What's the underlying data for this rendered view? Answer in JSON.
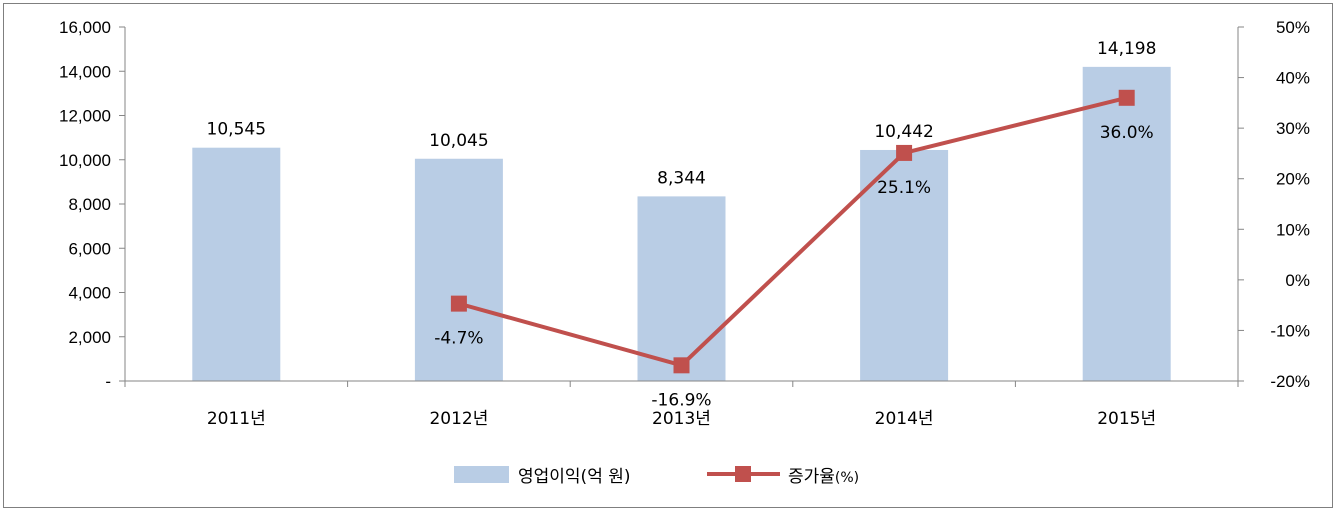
{
  "chart_data": {
    "type": "bar",
    "categories": [
      "2011년",
      "2012년",
      "2013년",
      "2014년",
      "2015년"
    ],
    "series": [
      {
        "name": "영업이익(억 원)",
        "type": "bar",
        "axis": "left",
        "values": [
          10545,
          10045,
          8344,
          10442,
          14198
        ],
        "labels": [
          "10,545",
          "10,045",
          "8,344",
          "10,442",
          "14,198"
        ],
        "color": "#b9cde5"
      },
      {
        "name": "증가율",
        "type": "line",
        "axis": "right",
        "values": [
          null,
          -4.7,
          -16.9,
          25.1,
          36.0
        ],
        "labels": [
          null,
          "-4.7%",
          "-16.9%",
          "25.1%",
          "36.0%"
        ],
        "color": "#c0504d"
      }
    ],
    "y_left": {
      "range": [
        0,
        16000
      ],
      "ticks": [
        0,
        2000,
        4000,
        6000,
        8000,
        10000,
        12000,
        14000,
        16000
      ],
      "tick_labels": [
        "-",
        "2,000",
        "4,000",
        "6,000",
        "8,000",
        "10,000",
        "12,000",
        "14,000",
        "16,000"
      ]
    },
    "y_right": {
      "range": [
        -20,
        50
      ],
      "ticks": [
        -20,
        -10,
        0,
        10,
        20,
        30,
        40,
        50
      ],
      "tick_labels": [
        "-20%",
        "-10%",
        "0%",
        "10%",
        "20%",
        "30%",
        "40%",
        "50%"
      ]
    },
    "legend": {
      "position": "bottom",
      "items": [
        {
          "label": "영업이익(억 원)",
          "suffix": ""
        },
        {
          "label": "증가율",
          "suffix": "(%)"
        }
      ]
    },
    "grid": false
  }
}
